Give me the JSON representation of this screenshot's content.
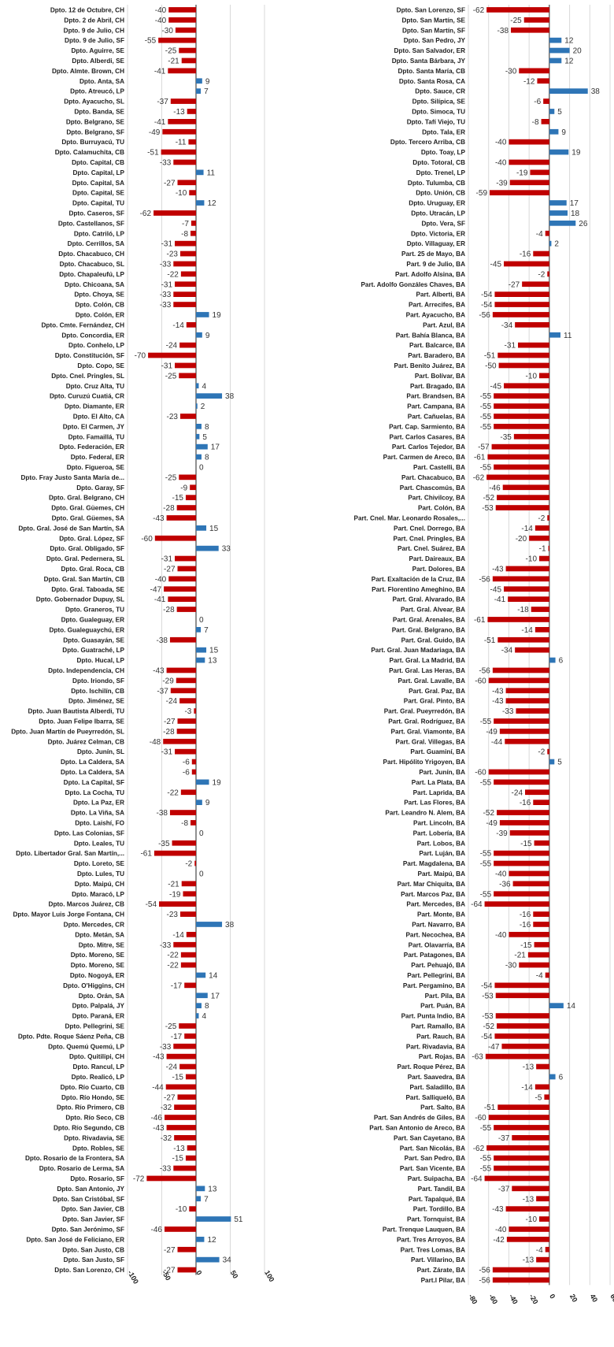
{
  "chart_data": [
    {
      "type": "bar",
      "orientation": "horizontal",
      "xlim": [
        -100,
        100
      ],
      "ticks": [
        "-100",
        "-50",
        "0",
        "50",
        "100"
      ],
      "ytick_values": [
        -100,
        -50,
        0,
        50,
        100
      ],
      "grid": "vertical",
      "colors": {
        "negative": "#c00000",
        "positive": "#2e75b6"
      },
      "categories": [
        "Dpto. 12 de Octubre, CH",
        "Dpto. 2 de Abril, CH",
        "Dpto. 9 de Julio, CH",
        "Dpto. 9 de Julio, SF",
        "Dpto. Aguirre, SE",
        "Dpto. Alberdi, SE",
        "Dpto. Almte. Brown, CH",
        "Dpto. Anta, SA",
        "Dpto. Atreucó, LP",
        "Dpto. Ayacucho, SL",
        "Dpto. Banda, SE",
        "Dpto. Belgrano, SE",
        "Dpto. Belgrano, SF",
        "Dpto. Burruyacú, TU",
        "Dpto. Calamuchita, CB",
        "Dpto. Capital, CB",
        "Dpto. Capital, LP",
        "Dpto. Capital, SA",
        "Dpto. Capital, SE",
        "Dpto. Capital, TU",
        "Dpto. Caseros, SF",
        "Dpto. Castellanos, SF",
        "Dpto. Catriló, LP",
        "Dpto. Cerrillos, SA",
        "Dpto. Chacabuco, CH",
        "Dpto. Chacabuco, SL",
        "Dpto. Chapaleufú, LP",
        "Dpto. Chicoana, SA",
        "Dpto. Choya, SE",
        "Dpto. Colón, CB",
        "Dpto. Colón, ER",
        "Dpto. Cmte. Fernández, CH",
        "Dpto. Concordia, ER",
        "Dpto. Conhelo, LP",
        "Dpto. Constitución, SF",
        "Dpto. Copo, SE",
        "Dpto. Cnel. Pringles, SL",
        "Dpto. Cruz Alta, TU",
        "Dpto. Curuzú Cuatiá, CR",
        "Dpto. Diamante, ER",
        "Dpto. El Alto, CA",
        "Dpto. El Carmen, JY",
        "Dpto. Famaillá, TU",
        "Dpto. Federación, ER",
        "Dpto. Federal, ER",
        "Dpto. Figueroa, SE",
        "Dpto. Fray Justo Santa María de...",
        "Dpto. Garay, SF",
        "Dpto. Gral. Belgrano, CH",
        "Dpto. Gral. Güemes, CH",
        "Dpto. Gral. Güemes, SA",
        "Dpto. Gral. José de San Martín, SA",
        "Dpto. Gral. López, SF",
        "Dpto. Gral. Obligado, SF",
        "Dpto. Gral. Pedernera, SL",
        "Dpto. Gral. Roca, CB",
        "Dpto. Gral. San Martín, CB",
        "Dpto. Gral. Taboada, SE",
        "Dpto. Gobernador Dupuy, SL",
        "Dpto. Graneros, TU",
        "Dpto. Gualeguay, ER",
        "Dpto. Gualeguaychú, ER",
        "Dpto. Guasayán, SE",
        "Dpto. Guatraché, LP",
        "Dpto. Hucal, LP",
        "Dpto. Independencia, CH",
        "Dpto. Iriondo, SF",
        "Dpto. Ischilín, CB",
        "Dpto. Jiménez, SE",
        "Dpto. Juan Bautista Alberdi, TU",
        "Dpto. Juan Felipe Ibarra, SE",
        "Dpto. Juan Martín de Pueyrredón, SL",
        "Dpto. Juárez Celman, CB",
        "Dpto. Junín, SL",
        "Dpto. La Caldera, SA",
        "Dpto. La Caldera, SA",
        "Dpto. La Capital, SF",
        "Dpto. La Cocha, TU",
        "Dpto. La Paz, ER",
        "Dpto. La Viña, SA",
        "Dpto. Laishí, FO",
        "Dpto. Las Colonias, SF",
        "Dpto. Leales, TU",
        "Dpto. Libertador Gral. San Martín,...",
        "Dpto. Loreto, SE",
        "Dpto. Lules, TU",
        "Dpto. Maipú, CH",
        "Dpto. Maracó, LP",
        "Dpto. Marcos Juárez, CB",
        "Dpto. Mayor Luis Jorge Fontana, CH",
        "Dpto. Mercedes, CR",
        "Dpto. Metán, SA",
        "Dpto. Mitre, SE",
        "Dpto. Moreno, SE",
        "Dpto. Moreno, SE",
        "Dpto. Nogoyá, ER",
        "Dpto. O'Higgins, CH",
        "Dpto. Orán, SA",
        "Dpto. Palpalá, JY",
        "Dpto. Paraná, ER",
        "Dpto. Pellegrini, SE",
        "Dpto. Pdte. Roque Sáenz Peña, CB",
        "Dpto. Quemú Quemú, LP",
        "Dpto. Quitilipi, CH",
        "Dpto. Rancul, LP",
        "Dpto. Realicó, LP",
        "Dpto. Río Cuarto, CB",
        "Dpto. Río Hondo, SE",
        "Dpto. Río Primero, CB",
        "Dpto. Río Seco, CB",
        "Dpto. Río Segundo, CB",
        "Dpto. Rivadavia, SE",
        "Dpto. Robles, SE",
        "Dpto. Rosario de la Frontera, SA",
        "Dpto. Rosario de Lerma, SA",
        "Dpto. Rosario, SF",
        "Dpto. San Antonio, JY",
        "Dpto. San Cristóbal, SF",
        "Dpto. San Javier, CB",
        "Dpto. San Javier, SF",
        "Dpto. San Jerónimo, SF",
        "Dpto. San José de Feliciano, ER",
        "Dpto. San Justo, CB",
        "Dpto. San Justo, SF",
        "Dpto. San Lorenzo, CH"
      ],
      "values": [
        -40,
        -40,
        -30,
        -55,
        -25,
        -21,
        -41,
        9,
        7,
        -37,
        -13,
        -41,
        -49,
        -11,
        -51,
        -33,
        11,
        -27,
        -10,
        12,
        -62,
        -7,
        -8,
        -31,
        -23,
        -33,
        -22,
        -31,
        -33,
        -33,
        19,
        -14,
        9,
        -24,
        -70,
        -31,
        -25,
        4,
        38,
        2,
        -23,
        8,
        5,
        17,
        8,
        0,
        -25,
        -9,
        -15,
        -28,
        -43,
        15,
        -60,
        33,
        -31,
        -27,
        -40,
        -47,
        -41,
        -28,
        0,
        7,
        -38,
        15,
        13,
        -43,
        -29,
        -37,
        -24,
        -3,
        -27,
        -28,
        -48,
        -31,
        -6,
        -6,
        19,
        -22,
        9,
        -38,
        -8,
        0,
        -35,
        -61,
        -2,
        0,
        -21,
        -19,
        -54,
        -23,
        38,
        -14,
        -33,
        -22,
        -22,
        14,
        -17,
        17,
        8,
        4,
        -25,
        -17,
        -33,
        -43,
        -24,
        -15,
        -44,
        -27,
        -32,
        -46,
        -43,
        -32,
        -13,
        -15,
        -33,
        -72,
        13,
        7,
        -10,
        51,
        -46,
        12,
        -27,
        34,
        -27
      ]
    },
    {
      "type": "bar",
      "orientation": "horizontal",
      "xlim": [
        -80,
        60
      ],
      "ticks": [
        "-80",
        "-60",
        "-40",
        "-20",
        "0",
        "20",
        "40",
        "60"
      ],
      "ytick_values": [
        -80,
        -60,
        -40,
        -20,
        0,
        20,
        40,
        60
      ],
      "grid": "vertical",
      "colors": {
        "negative": "#c00000",
        "positive": "#2e75b6"
      },
      "categories": [
        "Dpto. San Lorenzo, SF",
        "Dpto. San Martín, SE",
        "Dpto. San Martín, SF",
        "Dpto. San Pedro, JY",
        "Dpto. San Salvador, ER",
        "Dpto. Santa Bárbara, JY",
        "Dpto. Santa María, CB",
        "Dpto. Santa Rosa, CA",
        "Dpto. Sauce, CR",
        "Dpto. Silípica, SE",
        "Dpto. Simoca, TU",
        "Dpto. Tafí Viejo, TU",
        "Dpto. Tala, ER",
        "Dpto. Tercero Arriba, CB",
        "Dpto. Toay, LP",
        "Dpto. Totoral, CB",
        "Dpto. Trenel, LP",
        "Dpto. Tulumba, CB",
        "Dpto. Unión, CB",
        "Dpto. Uruguay, ER",
        "Dpto. Utracán, LP",
        "Dpto. Vera, SF",
        "Dpto. Victoria, ER",
        "Dpto. Villaguay, ER",
        "Part. 25 de Mayo, BA",
        "Part. 9 de Julio, BA",
        "Part. Adolfo Alsina, BA",
        "Part. Adolfo Gonzáles Chaves, BA",
        "Part. Alberti, BA",
        "Part. Arrecifes, BA",
        "Part. Ayacucho, BA",
        "Part. Azul, BA",
        "Part. Bahía Blanca, BA",
        "Part. Balcarce, BA",
        "Part. Baradero, BA",
        "Part. Benito Juárez, BA",
        "Part. Bolívar, BA",
        "Part. Bragado, BA",
        "Part. Brandsen, BA",
        "Part. Campana, BA",
        "Part. Cañuelas, BA",
        "Part. Cap. Sarmiento, BA",
        "Part. Carlos Casares, BA",
        "Part. Carlos Tejedor, BA",
        "Part. Carmen de Areco, BA",
        "Part. Castelli, BA",
        "Part. Chacabuco, BA",
        "Part. Chascomús, BA",
        "Part. Chivilcoy, BA",
        "Part. Colón, BA",
        "Part. Cnel. Mar. Leonardo Rosales,...",
        "Part. Cnel. Dorrego, BA",
        "Part. Cnel. Pringles, BA",
        "Part. Cnel. Suárez, BA",
        "Part. Daireaux, BA",
        "Part. Dolores, BA",
        "Part. Exaltación de la Cruz, BA",
        "Part. Florentino Ameghino, BA",
        "Part. Gral. Alvarado, BA",
        "Part. Gral. Alvear, BA",
        "Part. Gral. Arenales, BA",
        "Part. Gral. Belgrano, BA",
        "Part. Gral. Guido, BA",
        "Part. Gral. Juan Madariaga, BA",
        "Part. Gral. La Madrid, BA",
        "Part. Gral. Las Heras, BA",
        "Part. Gral. Lavalle, BA",
        "Part. Gral. Paz, BA",
        "Part. Gral. Pinto, BA",
        "Part. Gral. Pueyrredón, BA",
        "Part. Gral. Rodríguez, BA",
        "Part. Gral. Viamonte, BA",
        "Part. Gral. Villegas, BA",
        "Part. Guaminí, BA",
        "Part. Hipólito Yrigoyen, BA",
        "Part. Junín, BA",
        "Part. La Plata, BA",
        "Part. Laprida, BA",
        "Part. Las Flores, BA",
        "Part. Leandro N. Alem, BA",
        "Part. Lincoln, BA",
        "Part. Lobería, BA",
        "Part. Lobos, BA",
        "Part. Luján, BA",
        "Part. Magdalena, BA",
        "Part. Maipú, BA",
        "Part. Mar Chiquita, BA",
        "Part. Marcos Paz, BA",
        "Part. Mercedes, BA",
        "Part. Monte, BA",
        "Part. Navarro, BA",
        "Part. Necochea, BA",
        "Part. Olavarría, BA",
        "Part. Patagones, BA",
        "Part. Pehuajó, BA",
        "Part. Pellegrini, BA",
        "Part. Pergamino, BA",
        "Part. Pila, BA",
        "Part. Puán, BA",
        "Part. Punta Indio, BA",
        "Part. Ramallo, BA",
        "Part. Rauch, BA",
        "Part. Rivadavia, BA",
        "Part. Rojas, BA",
        "Part. Roque Pérez, BA",
        "Part. Saavedra, BA",
        "Part. Saladillo, BA",
        "Part. Salliqueló, BA",
        "Part. Salto, BA",
        "Part. San Andrés de Giles, BA",
        "Part. San Antonio de Areco, BA",
        "Part. San Cayetano, BA",
        "Part. San Nicolás, BA",
        "Part. San Pedro, BA",
        "Part. San Vicente, BA",
        "Part. Suipacha, BA",
        "Part. Tandil, BA",
        "Part. Tapalqué, BA",
        "Part. Tordillo, BA",
        "Part. Tornquist, BA",
        "Part. Trenque Lauquen, BA",
        "Part. Tres Arroyos, BA",
        "Part. Tres Lomas, BA",
        "Part. Villarino, BA",
        "Part. Zárate, BA",
        "Part.l Pilar, BA"
      ],
      "values": [
        -62,
        -25,
        -38,
        12,
        20,
        12,
        -30,
        -12,
        38,
        -6,
        5,
        -8,
        9,
        -40,
        19,
        -40,
        -19,
        -39,
        -59,
        17,
        18,
        26,
        -4,
        2,
        -16,
        -45,
        -2,
        -27,
        -54,
        -54,
        -56,
        -34,
        11,
        -31,
        -51,
        -50,
        -10,
        -45,
        -55,
        -55,
        -55,
        -55,
        -35,
        -57,
        -61,
        -55,
        -62,
        -46,
        -52,
        -53,
        -2,
        -14,
        -20,
        -1,
        -10,
        -43,
        -56,
        -45,
        -41,
        -18,
        -61,
        -14,
        -51,
        -34,
        6,
        -56,
        -60,
        -43,
        -43,
        -33,
        -55,
        -49,
        -44,
        -2,
        5,
        -60,
        -55,
        -24,
        -16,
        -52,
        -49,
        -39,
        -15,
        -55,
        -55,
        -40,
        -36,
        -55,
        -64,
        -16,
        -16,
        -40,
        -15,
        -21,
        -30,
        -4,
        -54,
        -53,
        14,
        -53,
        -52,
        -54,
        -47,
        -63,
        -13,
        6,
        -14,
        -5,
        -51,
        -60,
        -55,
        -37,
        -62,
        -55,
        -55,
        -64,
        -37,
        -13,
        -43,
        -10,
        -40,
        -42,
        -4,
        -13,
        -56,
        -56
      ]
    }
  ]
}
